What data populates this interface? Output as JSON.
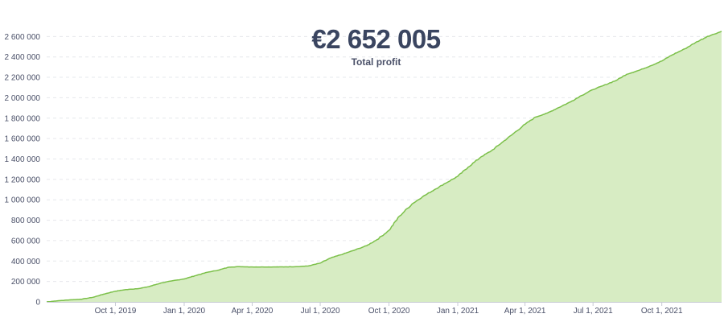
{
  "headline": {
    "value": "€2 652 005",
    "label": "Total profit"
  },
  "colors": {
    "line": "#7cc04a",
    "fill": "#d7ecc3",
    "grid": "#e6e8ec",
    "text": "#4a5068"
  },
  "chart_data": {
    "type": "area",
    "title": "Total profit",
    "xlabel": "",
    "ylabel": "",
    "ylim": [
      0,
      2650000
    ],
    "yticks": [
      0,
      200000,
      400000,
      600000,
      800000,
      1000000,
      1200000,
      1400000,
      1600000,
      1800000,
      2000000,
      2200000,
      2400000,
      2600000
    ],
    "ytick_labels": [
      "0",
      "200 000",
      "400 000",
      "600 000",
      "800 000",
      "1 000 000",
      "1 200 000",
      "1 400 000",
      "1 600 000",
      "1 800 000",
      "2 000 000",
      "2 200 000",
      "2 400 000",
      "2 600 000"
    ],
    "xlim": [
      "2019-07-01",
      "2021-12-20"
    ],
    "xticks": [
      "2019-10-01",
      "2020-01-01",
      "2020-04-01",
      "2020-07-01",
      "2020-10-01",
      "2021-01-01",
      "2021-04-01",
      "2021-07-01",
      "2021-10-01"
    ],
    "xtick_labels": [
      "Oct 1, 2019",
      "Jan 1, 2020",
      "Apr 1, 2020",
      "Jul 1, 2020",
      "Oct 1, 2020",
      "Jan 1, 2021",
      "Apr 1, 2021",
      "Jul 1, 2021",
      "Oct 1, 2021"
    ],
    "grid": true,
    "series": [
      {
        "x": [
          "2019-07-01",
          "2019-07-15",
          "2019-08-01",
          "2019-08-15",
          "2019-09-01",
          "2019-09-15",
          "2019-10-01",
          "2019-10-15",
          "2019-11-01",
          "2019-11-15",
          "2019-12-01",
          "2019-12-15",
          "2020-01-01",
          "2020-01-15",
          "2020-02-01",
          "2020-02-15",
          "2020-03-01",
          "2020-03-15",
          "2020-04-01",
          "2020-04-15",
          "2020-05-01",
          "2020-05-15",
          "2020-06-01",
          "2020-06-15",
          "2020-07-01",
          "2020-07-15",
          "2020-08-01",
          "2020-08-15",
          "2020-09-01",
          "2020-09-15",
          "2020-10-01",
          "2020-10-15",
          "2020-11-01",
          "2020-11-15",
          "2020-12-01",
          "2020-12-15",
          "2021-01-01",
          "2021-01-15",
          "2021-02-01",
          "2021-02-15",
          "2021-03-01",
          "2021-03-15",
          "2021-04-01",
          "2021-04-15",
          "2021-05-01",
          "2021-05-15",
          "2021-06-01",
          "2021-06-15",
          "2021-07-01",
          "2021-07-15",
          "2021-08-01",
          "2021-08-15",
          "2021-09-01",
          "2021-09-15",
          "2021-10-01",
          "2021-10-15",
          "2021-11-01",
          "2021-11-15",
          "2021-12-01",
          "2021-12-20"
        ],
        "y": [
          0,
          10000,
          20000,
          25000,
          45000,
          75000,
          105000,
          120000,
          130000,
          150000,
          185000,
          205000,
          225000,
          255000,
          290000,
          310000,
          340000,
          345000,
          342000,
          342000,
          342000,
          343000,
          345000,
          352000,
          380000,
          430000,
          470000,
          505000,
          550000,
          610000,
          700000,
          840000,
          960000,
          1030000,
          1100000,
          1160000,
          1230000,
          1320000,
          1420000,
          1480000,
          1560000,
          1640000,
          1740000,
          1810000,
          1850000,
          1900000,
          1960000,
          2020000,
          2080000,
          2120000,
          2170000,
          2230000,
          2270000,
          2310000,
          2360000,
          2420000,
          2480000,
          2540000,
          2600000,
          2650000
        ]
      }
    ]
  }
}
